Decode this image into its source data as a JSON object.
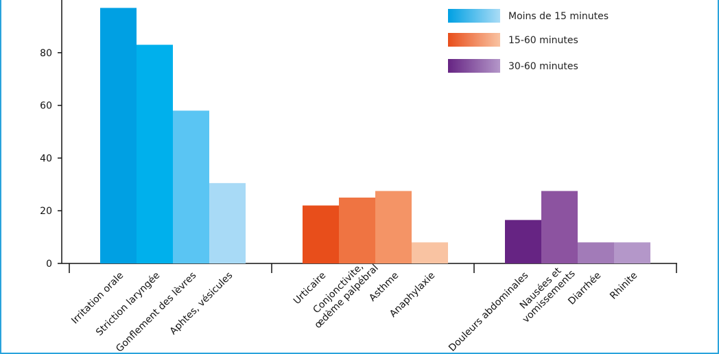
{
  "chart_data": {
    "type": "bar",
    "ylim": [
      0,
      100
    ],
    "yticks": [
      0,
      20,
      40,
      60,
      80
    ],
    "legend_position": "top-right",
    "series": [
      {
        "name": "Moins de 15 minutes",
        "color_start": "#00a0e3",
        "color_end": "#aadcf6",
        "categories": [
          "Irritation orale",
          "Striction laryngée",
          "Gonflement des lèvres",
          "Aphtes, vésicules"
        ],
        "values": [
          97,
          83,
          58,
          30.5
        ],
        "colors": [
          "#00a0e3",
          "#00b0ec",
          "#5ac5f3",
          "#a8daf6"
        ]
      },
      {
        "name": "15-60 minutes",
        "color_start": "#e84e1b",
        "color_end": "#f9c3a2",
        "categories": [
          "Urticaire",
          "Conjonctivite,|œdème palpébral",
          "Asthme",
          "Anaphylaxie"
        ],
        "values": [
          22,
          25,
          27.5,
          8
        ],
        "colors": [
          "#e84e1b",
          "#ef7442",
          "#f49466",
          "#f9c3a2"
        ]
      },
      {
        "name": "30-60 minutes",
        "color_start": "#662483",
        "color_end": "#b497c9",
        "categories": [
          "Douleurs abdominales",
          "Nausées et|vomissements",
          "Diarrhée",
          "Rhinite"
        ],
        "values": [
          16.5,
          27.5,
          8,
          8
        ],
        "colors": [
          "#662483",
          "#8c53a0",
          "#a27bb8",
          "#b497c9"
        ]
      }
    ]
  }
}
